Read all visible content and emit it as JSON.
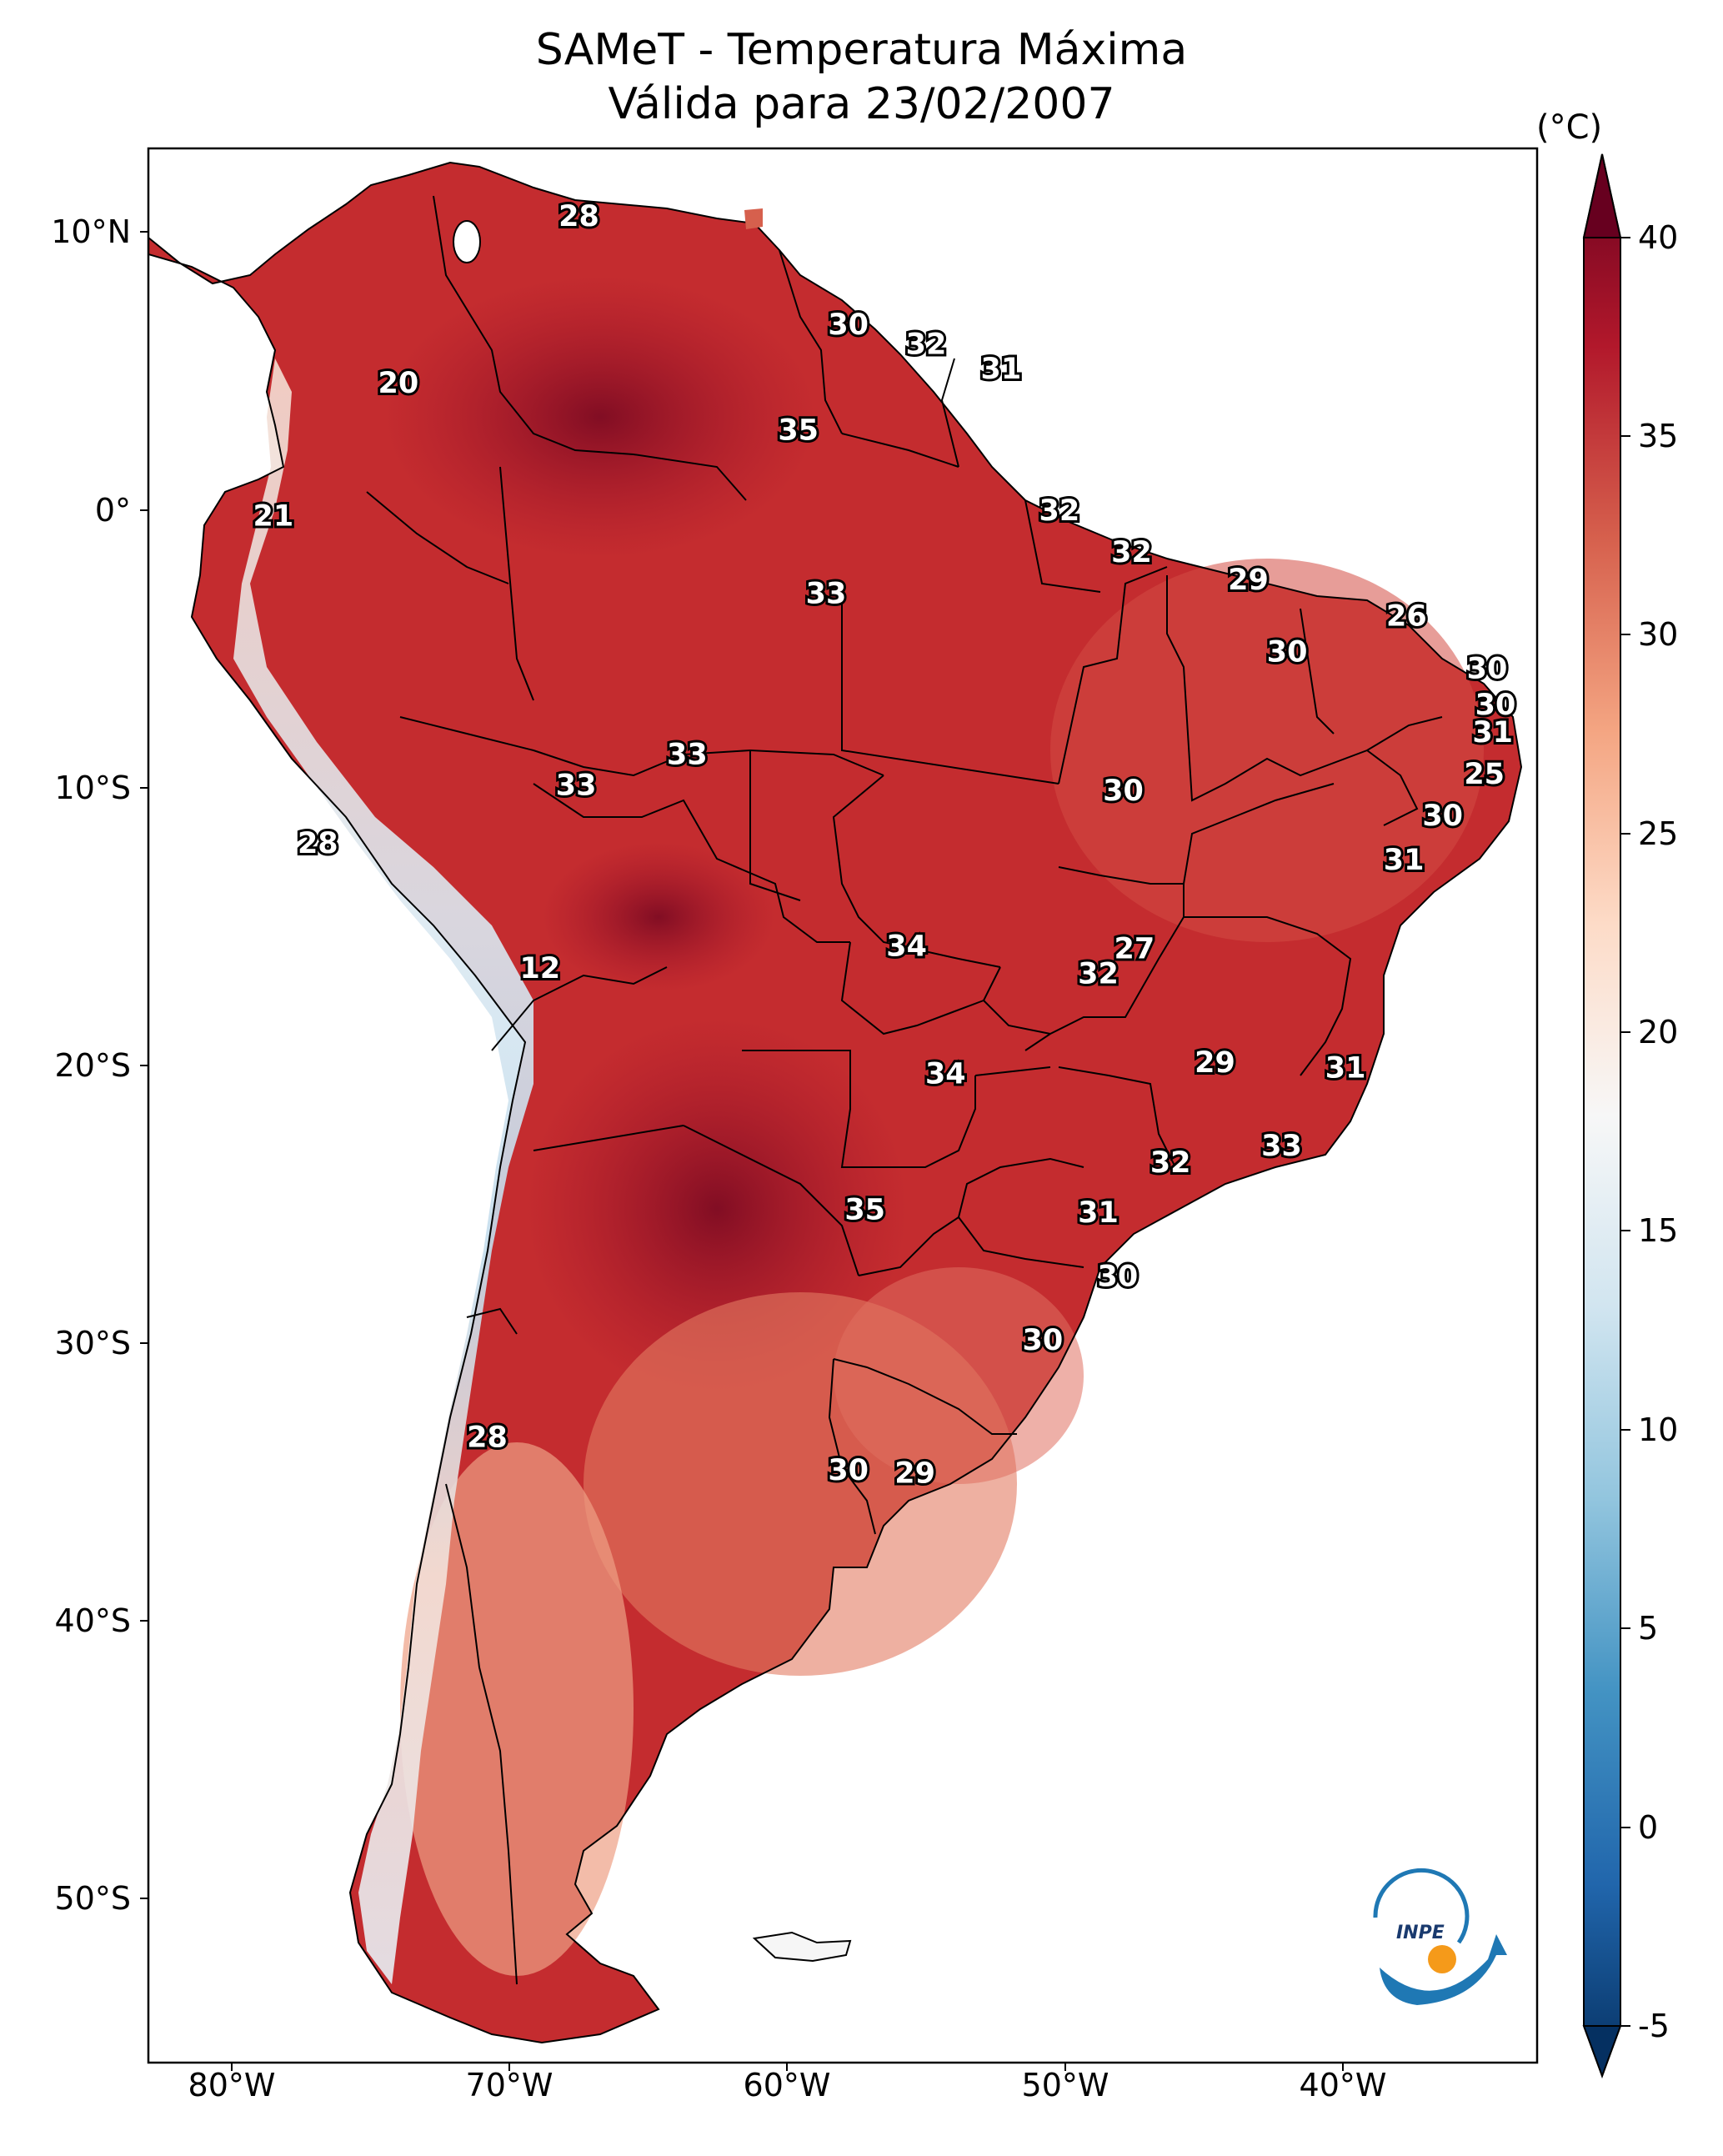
{
  "title_line1": "SAMeT - Temperatura Máxima",
  "title_line2": "Válida para 23/02/2007",
  "colorbar": {
    "unit": "(°C)",
    "ticks": [
      "40",
      "35",
      "30",
      "25",
      "20",
      "15",
      "10",
      "5",
      "0",
      "-5"
    ],
    "min": -5,
    "max": 40,
    "colormap": "RdBu_r",
    "colors": [
      "#053061",
      "#2166ac",
      "#4393c3",
      "#92c5de",
      "#d1e5f0",
      "#f7f7f7",
      "#fddbc7",
      "#f4a582",
      "#d6604d",
      "#b2182b",
      "#67001f"
    ]
  },
  "axes": {
    "lat_ticks": [
      "10°N",
      "0°",
      "10°S",
      "20°S",
      "30°S",
      "40°S",
      "50°S"
    ],
    "lon_ticks": [
      "80°W",
      "70°W",
      "60°W",
      "50°W",
      "40°W"
    ],
    "lon_range": [
      -83,
      -33
    ],
    "lat_range": [
      -56,
      13
    ]
  },
  "contour_labels": [
    {
      "text": "28",
      "lon": -67.5,
      "lat": 10.5
    },
    {
      "text": "20",
      "lon": -74,
      "lat": 4.5
    },
    {
      "text": "30",
      "lon": -57.8,
      "lat": 6.6
    },
    {
      "text": "32",
      "lon": -55,
      "lat": 5.9
    },
    {
      "text": "31",
      "lon": -52.3,
      "lat": 5
    },
    {
      "text": "35",
      "lon": -59.6,
      "lat": 2.8
    },
    {
      "text": "21",
      "lon": -78.5,
      "lat": -0.3
    },
    {
      "text": "32",
      "lon": -50.2,
      "lat": -0.1
    },
    {
      "text": "32",
      "lon": -47.6,
      "lat": -1.6
    },
    {
      "text": "29",
      "lon": -43.4,
      "lat": -2.6
    },
    {
      "text": "33",
      "lon": -58.6,
      "lat": -3.1
    },
    {
      "text": "26",
      "lon": -37.7,
      "lat": -3.9
    },
    {
      "text": "30",
      "lon": -42,
      "lat": -5.2
    },
    {
      "text": "30",
      "lon": -34.8,
      "lat": -5.8
    },
    {
      "text": "30",
      "lon": -34.5,
      "lat": -7.1
    },
    {
      "text": "31",
      "lon": -34.6,
      "lat": -8.1
    },
    {
      "text": "33",
      "lon": -63.6,
      "lat": -8.9
    },
    {
      "text": "33",
      "lon": -67.6,
      "lat": -10
    },
    {
      "text": "30",
      "lon": -47.9,
      "lat": -10.2
    },
    {
      "text": "25",
      "lon": -34.9,
      "lat": -9.6
    },
    {
      "text": "30",
      "lon": -36.4,
      "lat": -11.1
    },
    {
      "text": "28",
      "lon": -76.9,
      "lat": -12.1
    },
    {
      "text": "31",
      "lon": -37.8,
      "lat": -12.7
    },
    {
      "text": "34",
      "lon": -55.7,
      "lat": -15.8
    },
    {
      "text": "27",
      "lon": -47.5,
      "lat": -15.9
    },
    {
      "text": "32",
      "lon": -48.8,
      "lat": -16.8
    },
    {
      "text": "12",
      "lon": -68.9,
      "lat": -16.6
    },
    {
      "text": "29",
      "lon": -44.6,
      "lat": -20
    },
    {
      "text": "31",
      "lon": -39.9,
      "lat": -20.2
    },
    {
      "text": "34",
      "lon": -54.3,
      "lat": -20.4
    },
    {
      "text": "33",
      "lon": -42.2,
      "lat": -23
    },
    {
      "text": "32",
      "lon": -46.2,
      "lat": -23.6
    },
    {
      "text": "35",
      "lon": -57.2,
      "lat": -25.3
    },
    {
      "text": "31",
      "lon": -48.8,
      "lat": -25.4
    },
    {
      "text": "30",
      "lon": -48.1,
      "lat": -27.7
    },
    {
      "text": "30",
      "lon": -50.8,
      "lat": -30
    },
    {
      "text": "28",
      "lon": -70.8,
      "lat": -33.5
    },
    {
      "text": "30",
      "lon": -57.8,
      "lat": -34.7
    },
    {
      "text": "29",
      "lon": -55.4,
      "lat": -34.8
    }
  ],
  "logo_text": "INPE"
}
